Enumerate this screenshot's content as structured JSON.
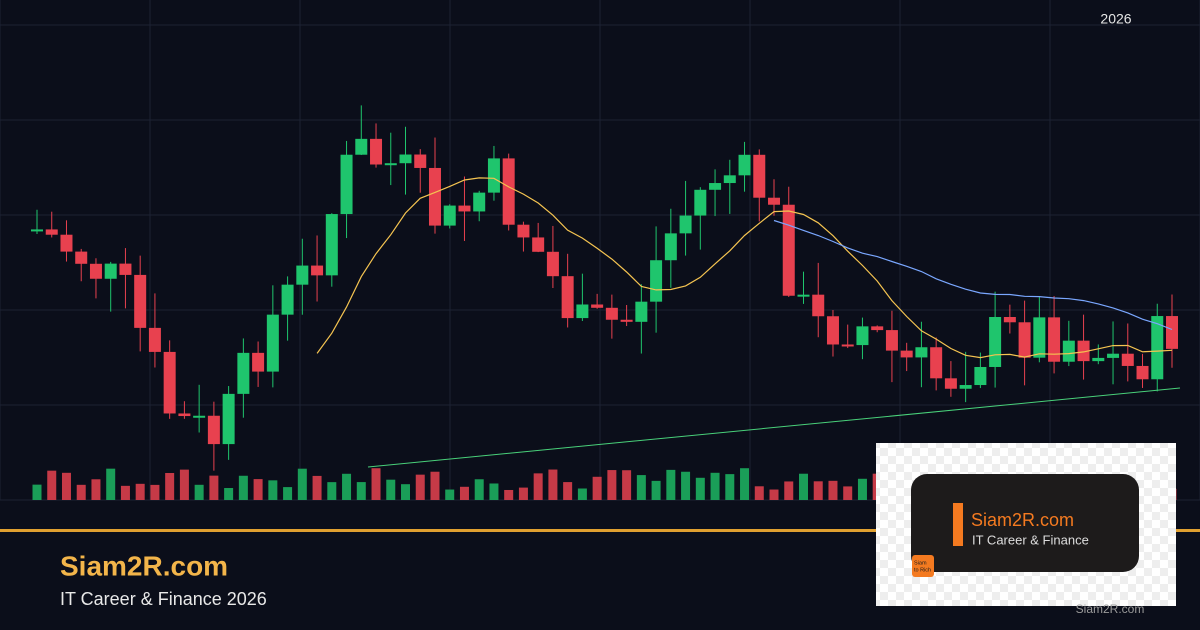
{
  "header": {
    "year": "2026"
  },
  "brand": {
    "title": "Siam2R.com",
    "subtitle": "IT Career & Finance 2026"
  },
  "logo_card": {
    "title": "Siam2R.com",
    "subtitle": "IT Career & Finance",
    "badge": [
      "Siam",
      "to Rich"
    ]
  },
  "watermark": "Siam2R.com"
}
